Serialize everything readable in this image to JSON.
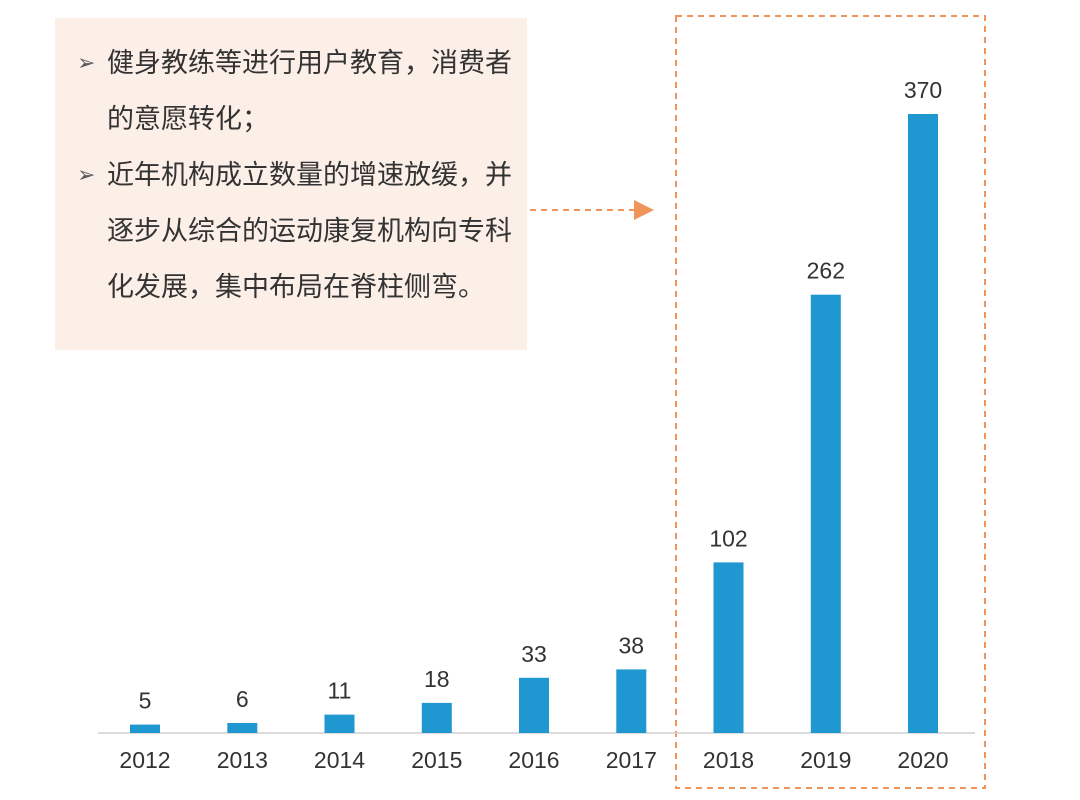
{
  "callout": {
    "bullets": [
      {
        "marker": "➢",
        "text": "健身教练等进行用户教育，消费者的意愿转化；"
      },
      {
        "marker": "➢",
        "text": "近年机构成立数量的增速放缓，并逐步从综合的运动康复机构向专科化发展，集中布局在脊柱侧弯。"
      }
    ]
  },
  "chart_data": {
    "type": "bar",
    "categories": [
      "2012",
      "2013",
      "2014",
      "2015",
      "2016",
      "2017",
      "2018",
      "2019",
      "2020"
    ],
    "values": [
      5,
      6,
      11,
      18,
      33,
      38,
      102,
      262,
      370
    ],
    "title": "",
    "xlabel": "",
    "ylabel": "",
    "ylim": [
      0,
      370
    ],
    "grid": false,
    "highlight_categories": [
      "2018",
      "2019",
      "2020"
    ],
    "colors": {
      "bar": "#1f97d1",
      "highlight_box": "#f0955a",
      "arrow": "#f0955a",
      "callout_bg": "#fcefe8"
    }
  }
}
